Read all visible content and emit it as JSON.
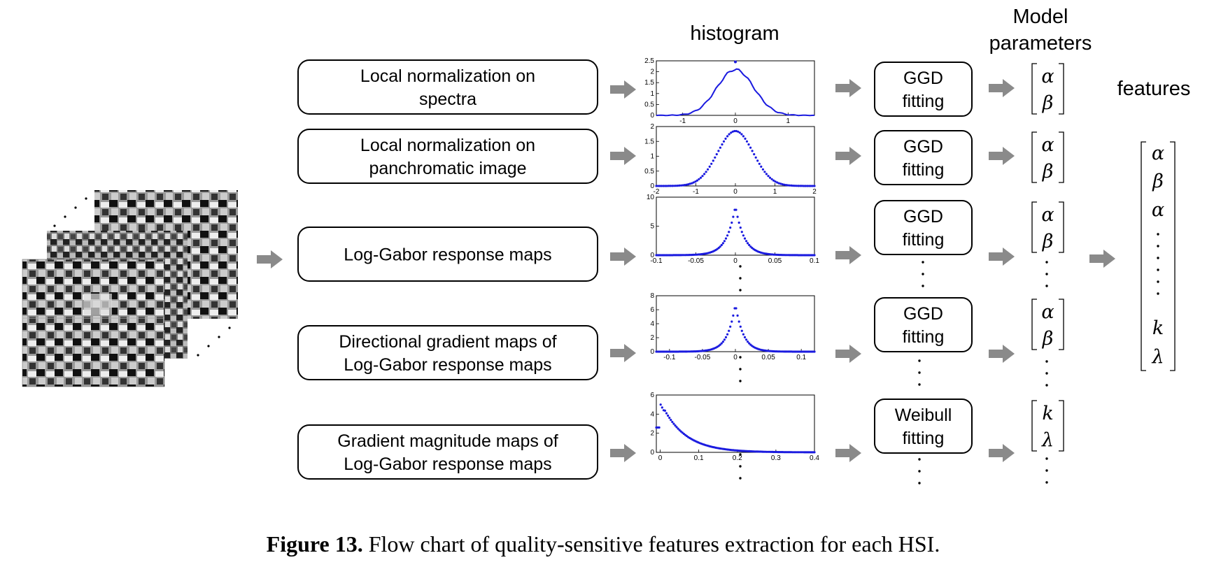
{
  "headers": {
    "histogram": "histogram",
    "model_params_line1": "Model",
    "model_params_line2": "parameters",
    "features": "features"
  },
  "process_boxes": [
    {
      "lines": [
        "Local normalization on",
        "spectra"
      ]
    },
    {
      "lines": [
        "Local normalization on",
        "panchromatic image"
      ]
    },
    {
      "lines": [
        "Log-Gabor response maps"
      ]
    },
    {
      "lines": [
        "Directional gradient maps of",
        "Log-Gabor response maps"
      ]
    },
    {
      "lines": [
        "Gradient magnitude maps of",
        "Log-Gabor response maps"
      ]
    }
  ],
  "fitting_boxes": [
    {
      "lines": [
        "GGD",
        "fitting"
      ]
    },
    {
      "lines": [
        "GGD",
        "fitting"
      ]
    },
    {
      "lines": [
        "GGD",
        "fitting"
      ]
    },
    {
      "lines": [
        "GGD",
        "fitting"
      ]
    },
    {
      "lines": [
        "Weibull",
        "fitting"
      ]
    }
  ],
  "parameter_vectors": [
    [
      "α",
      "β"
    ],
    [
      "α",
      "β"
    ],
    [
      "α",
      "β"
    ],
    [
      "α",
      "β"
    ],
    [
      "k",
      "λ"
    ]
  ],
  "feature_vector": [
    "α",
    "β",
    "α",
    "k",
    "λ"
  ],
  "histograms": [
    {
      "y_ticks": [
        "2.5",
        "2",
        "1.5",
        "1",
        "0.5",
        "0"
      ],
      "x_ticks": [
        "-1",
        "0",
        "1"
      ]
    },
    {
      "y_ticks": [
        "2",
        "1.5",
        "1",
        "0.5",
        "0"
      ],
      "x_ticks": [
        "-2",
        "-1",
        "0",
        "1",
        "2"
      ]
    },
    {
      "y_ticks": [
        "10",
        "5",
        "0"
      ],
      "x_ticks": [
        "-0.1",
        "-0.05",
        "0",
        "0.05",
        "0.1"
      ]
    },
    {
      "y_ticks": [
        "8",
        "6",
        "4",
        "2",
        "0"
      ],
      "x_ticks": [
        "-0.1",
        "-0.05",
        "0",
        "0.05",
        "0.1"
      ]
    },
    {
      "y_ticks": [
        "6",
        "4",
        "2",
        "0"
      ],
      "x_ticks": [
        "0",
        "0.1",
        "0.2",
        "0.3",
        "0.4"
      ]
    }
  ],
  "caption": {
    "label": "Figure 13.",
    "text": " Flow chart of quality-sensitive features extraction for each HSI."
  },
  "colors": {
    "arrow": "#8a8a8a",
    "curve": "#1a1adf",
    "line": "#000000"
  }
}
